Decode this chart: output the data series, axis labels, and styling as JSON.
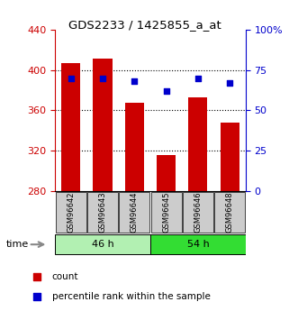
{
  "title": "GDS2233 / 1425855_a_at",
  "samples": [
    "GSM96642",
    "GSM96643",
    "GSM96644",
    "GSM96645",
    "GSM96646",
    "GSM96648"
  ],
  "counts": [
    407,
    411,
    368,
    316,
    373,
    348
  ],
  "percentiles": [
    70,
    70,
    68,
    62,
    70,
    67
  ],
  "groups": [
    {
      "label": "46 h",
      "indices": [
        0,
        1,
        2
      ],
      "color": "#b2f0b2"
    },
    {
      "label": "54 h",
      "indices": [
        3,
        4,
        5
      ],
      "color": "#33dd33"
    }
  ],
  "bar_color": "#cc0000",
  "dot_color": "#0000cc",
  "left_axis_color": "#cc0000",
  "right_axis_color": "#0000cc",
  "ylim_left": [
    280,
    440
  ],
  "ylim_right": [
    0,
    100
  ],
  "left_ticks": [
    280,
    320,
    360,
    400,
    440
  ],
  "right_ticks": [
    0,
    25,
    50,
    75,
    100
  ],
  "right_tick_labels": [
    "0",
    "25",
    "50",
    "75",
    "100%"
  ],
  "grid_color": "#000000",
  "plot_bg": "#ffffff",
  "legend_items": [
    {
      "label": "count",
      "color": "#cc0000"
    },
    {
      "label": "percentile rank within the sample",
      "color": "#0000cc"
    }
  ],
  "bar_width": 0.6,
  "time_label": "time",
  "bar_bottom": 280,
  "group_ranges": [
    [
      -0.5,
      2.5
    ],
    [
      2.5,
      5.5
    ]
  ]
}
